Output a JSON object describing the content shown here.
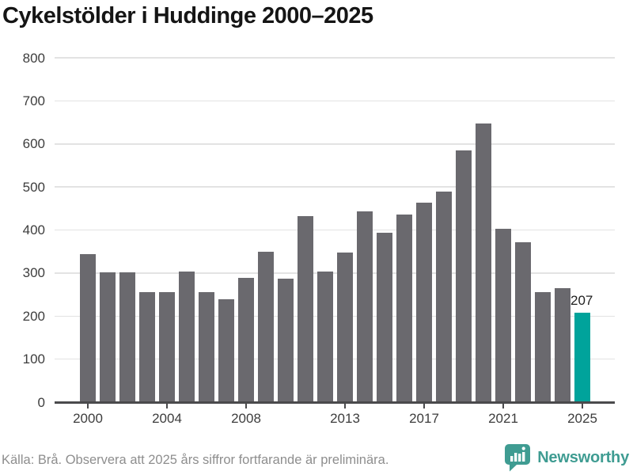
{
  "title": "Cykelstölder i Huddinge 2000–2025",
  "chart_data": {
    "type": "bar",
    "title": "Cykelstölder i Huddinge 2000–2025",
    "categories": [
      "2000",
      "2001",
      "2002",
      "2003",
      "2004",
      "2005",
      "2006",
      "2007",
      "2008",
      "2009",
      "2010",
      "2011",
      "2012",
      "2013",
      "2014",
      "2015",
      "2016",
      "2017",
      "2018",
      "2019",
      "2020",
      "2021",
      "2022",
      "2023",
      "2024",
      "2025"
    ],
    "values": [
      343,
      301,
      301,
      255,
      255,
      303,
      255,
      240,
      289,
      350,
      286,
      433,
      303,
      348,
      444,
      394,
      435,
      464,
      490,
      584,
      647,
      403,
      371,
      256,
      265,
      207
    ],
    "xlabel": "",
    "ylabel": "",
    "ylim": [
      0,
      800
    ],
    "yticks": [
      0,
      100,
      200,
      300,
      400,
      500,
      600,
      700,
      800
    ],
    "xtick_labels": [
      "2000",
      "2004",
      "2008",
      "2013",
      "2017",
      "2021",
      "2025"
    ],
    "grid": "horizontal",
    "legend": "none",
    "colors": {
      "bar": "#6a696e",
      "highlight": "#00a39b",
      "gridline": "#e3e3e3",
      "axis": "#4a4a4c"
    },
    "highlight": {
      "category": "2025",
      "label": "207"
    }
  },
  "footer": {
    "source_note": "Källa: Brå. Observera att 2025 års siffror fortfarande är preliminära."
  },
  "branding": {
    "name": "Newsworthy",
    "color": "#3f9c92",
    "icon": "newsworthy-speech-bubble-chart-icon"
  }
}
